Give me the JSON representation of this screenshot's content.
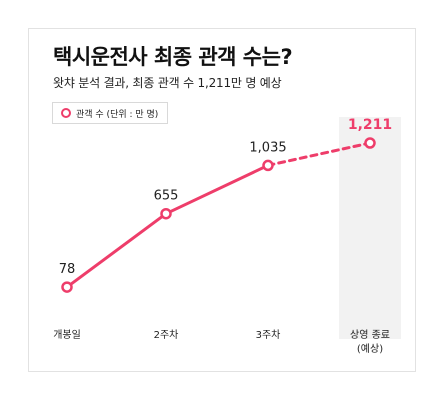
{
  "title": "택시운전사 최종 관객 수는?",
  "subtitle": "왓챠 분석 결과, 최종 관객 수 1,211만 명 예상",
  "legend": {
    "label": "관객 수 (단위 : 만 명)"
  },
  "colors": {
    "series": "#ee3d6a",
    "highlight_band": "#f2f2f2",
    "forecast_label": "#ee3d6a",
    "label": "#222222"
  },
  "chart_data": {
    "type": "line",
    "title": "택시운전사 최종 관객 수는?",
    "subtitle": "왓챠 분석 결과, 최종 관객 수 1,211만 명 예상",
    "categories": [
      "개봉일",
      "2주차",
      "3주차",
      "상영 종료\n(예상)"
    ],
    "series": [
      {
        "name": "관객 수 (단위 : 만 명)",
        "values": [
          78,
          655,
          1035,
          1211
        ],
        "labels": [
          "78",
          "655",
          "1,035",
          "1,211"
        ],
        "style": [
          "solid",
          "solid",
          "solid",
          "dashed"
        ]
      }
    ],
    "forecast_index": 3,
    "grid": false,
    "legend_position": "top-left"
  }
}
